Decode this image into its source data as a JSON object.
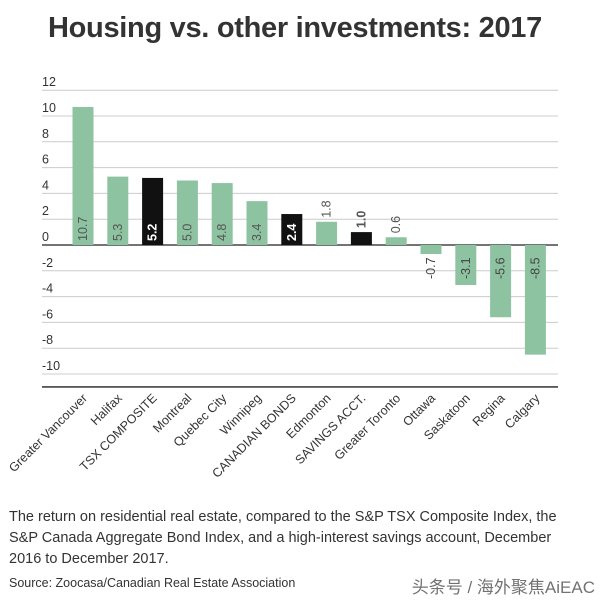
{
  "chart_data": {
    "type": "bar",
    "title": "Housing vs. other investments: 2017",
    "xlabel": "",
    "ylabel": "",
    "ylim": [
      -11,
      12
    ],
    "yticks": [
      12,
      10,
      8,
      6,
      4,
      2,
      0,
      -2,
      -4,
      -6,
      -8,
      -10
    ],
    "ytick_labels": [
      "12",
      "10",
      "8",
      "6",
      "4",
      "2",
      "0",
      "-2",
      "-4",
      "-6",
      "-8",
      "-10"
    ],
    "grid": true,
    "categories": [
      "Greater Vancouver",
      "Halifax",
      "TSX COMPOSITE",
      "Montreal",
      "Quebec City",
      "Winnipeg",
      "CANADIAN BONDS",
      "Edmonton",
      "SAVINGS ACCT.",
      "Greater Toronto",
      "Ottawa",
      "Saskatoon",
      "Regina",
      "Calgary"
    ],
    "values": [
      10.7,
      5.3,
      5.2,
      5.0,
      4.8,
      3.4,
      2.4,
      1.8,
      1.0,
      0.6,
      -0.7,
      -3.1,
      -5.6,
      -8.5
    ],
    "value_labels": [
      "10.7",
      "5.3",
      "5.2",
      "5.0",
      "4.8",
      "3.4",
      "2.4",
      "1.8",
      "1.0",
      "0.6",
      "-0.7",
      "-3.1",
      "-5.6",
      "-8.5"
    ],
    "kinds": [
      "housing",
      "housing",
      "benchmark",
      "housing",
      "housing",
      "housing",
      "benchmark",
      "housing",
      "benchmark",
      "housing",
      "housing",
      "housing",
      "housing",
      "housing"
    ],
    "colors": {
      "housing": "#8dc3a1",
      "benchmark": "#111111",
      "grid": "#cccccc",
      "axis": "#222222",
      "text": "#333333"
    }
  },
  "caption": "The return on residential real estate, compared to the S&P TSX Composite Index, the S&P Canada Aggregate Bond Index, and a high-interest savings account, December 2016 to December 2017.",
  "source": "Source: Zoocasa/Canadian Real Estate Association",
  "watermark": "头条号 / 海外聚焦AiEAC"
}
